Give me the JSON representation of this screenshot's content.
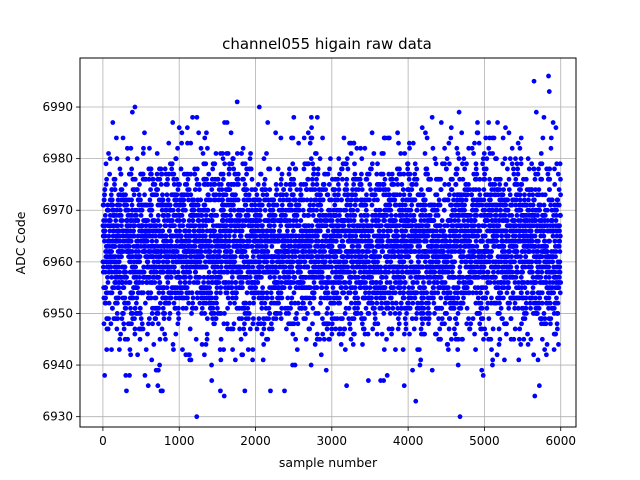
{
  "chart_data": {
    "type": "scatter",
    "title": "channel055 higain raw data",
    "xlabel": "sample number",
    "ylabel": "ADC Code",
    "xlim": [
      -300,
      6200
    ],
    "ylim": [
      6928,
      6999.5
    ],
    "xticks": [
      0,
      1000,
      2000,
      3000,
      4000,
      5000,
      6000
    ],
    "yticks": [
      6930,
      6940,
      6950,
      6960,
      6970,
      6980,
      6990
    ],
    "grid": true,
    "marker_color": "#0000ff",
    "series": [
      {
        "n_points": 6000,
        "center": 6963,
        "dense_band": [
          6950,
          6976
        ],
        "sparse_band": [
          6935,
          6990
        ],
        "outliers": [
          {
            "x": 1230,
            "y": 6930
          },
          {
            "x": 4680,
            "y": 6930
          },
          {
            "x": 4100,
            "y": 6933
          },
          {
            "x": 1540,
            "y": 6935
          },
          {
            "x": 1590,
            "y": 6934
          },
          {
            "x": 720,
            "y": 6936
          },
          {
            "x": 780,
            "y": 6935
          },
          {
            "x": 2380,
            "y": 6935
          },
          {
            "x": 5720,
            "y": 6936
          },
          {
            "x": 5660,
            "y": 6934
          },
          {
            "x": 3640,
            "y": 6937
          },
          {
            "x": 300,
            "y": 6938
          },
          {
            "x": 1760,
            "y": 6991
          },
          {
            "x": 2050,
            "y": 6990
          },
          {
            "x": 420,
            "y": 6990
          },
          {
            "x": 5680,
            "y": 6989
          },
          {
            "x": 5780,
            "y": 6988
          },
          {
            "x": 5840,
            "y": 6996
          },
          {
            "x": 5650,
            "y": 6995
          },
          {
            "x": 5850,
            "y": 6993
          }
        ]
      }
    ]
  }
}
